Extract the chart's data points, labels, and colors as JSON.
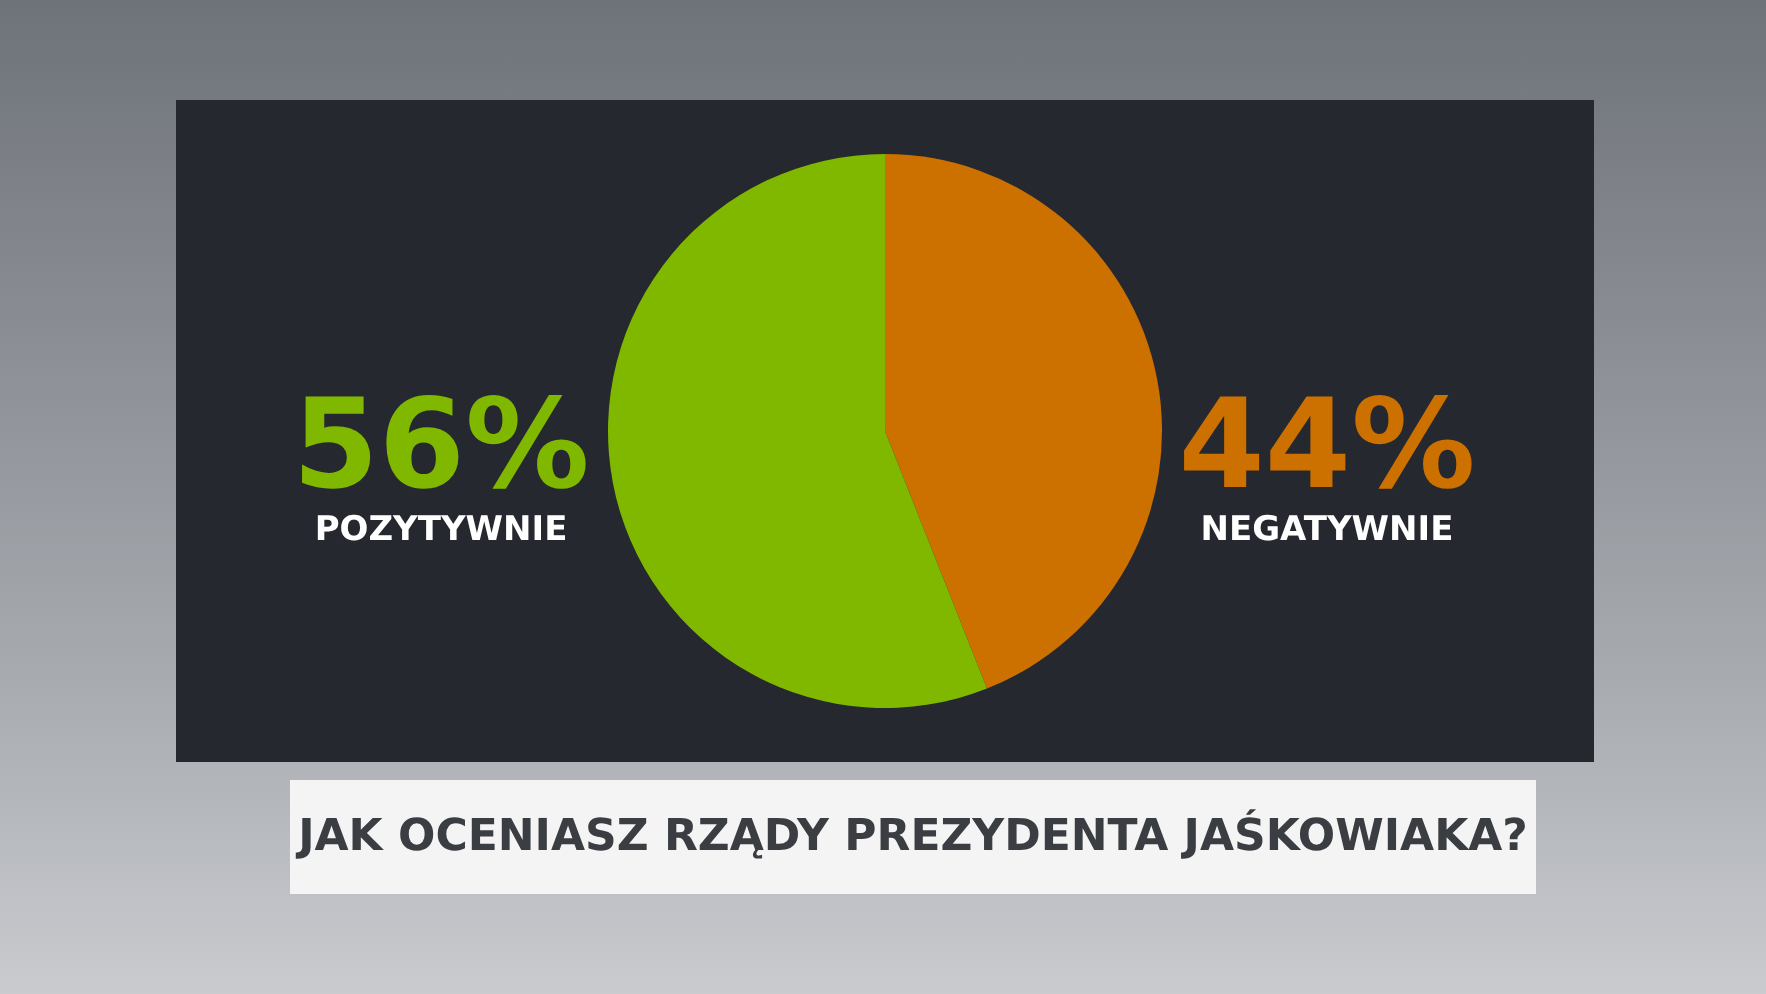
{
  "chart_data": {
    "type": "pie",
    "title": "JAK OCENIASZ RZĄDY PREZYDENTA JAŚKOWIAKA?",
    "categories": [
      "NEGATYWNIE",
      "POZYTYWNIE"
    ],
    "values": [
      44,
      56
    ],
    "value_labels": [
      "44%",
      "56%"
    ],
    "colors": [
      "#cc7000",
      "#80b800"
    ]
  }
}
